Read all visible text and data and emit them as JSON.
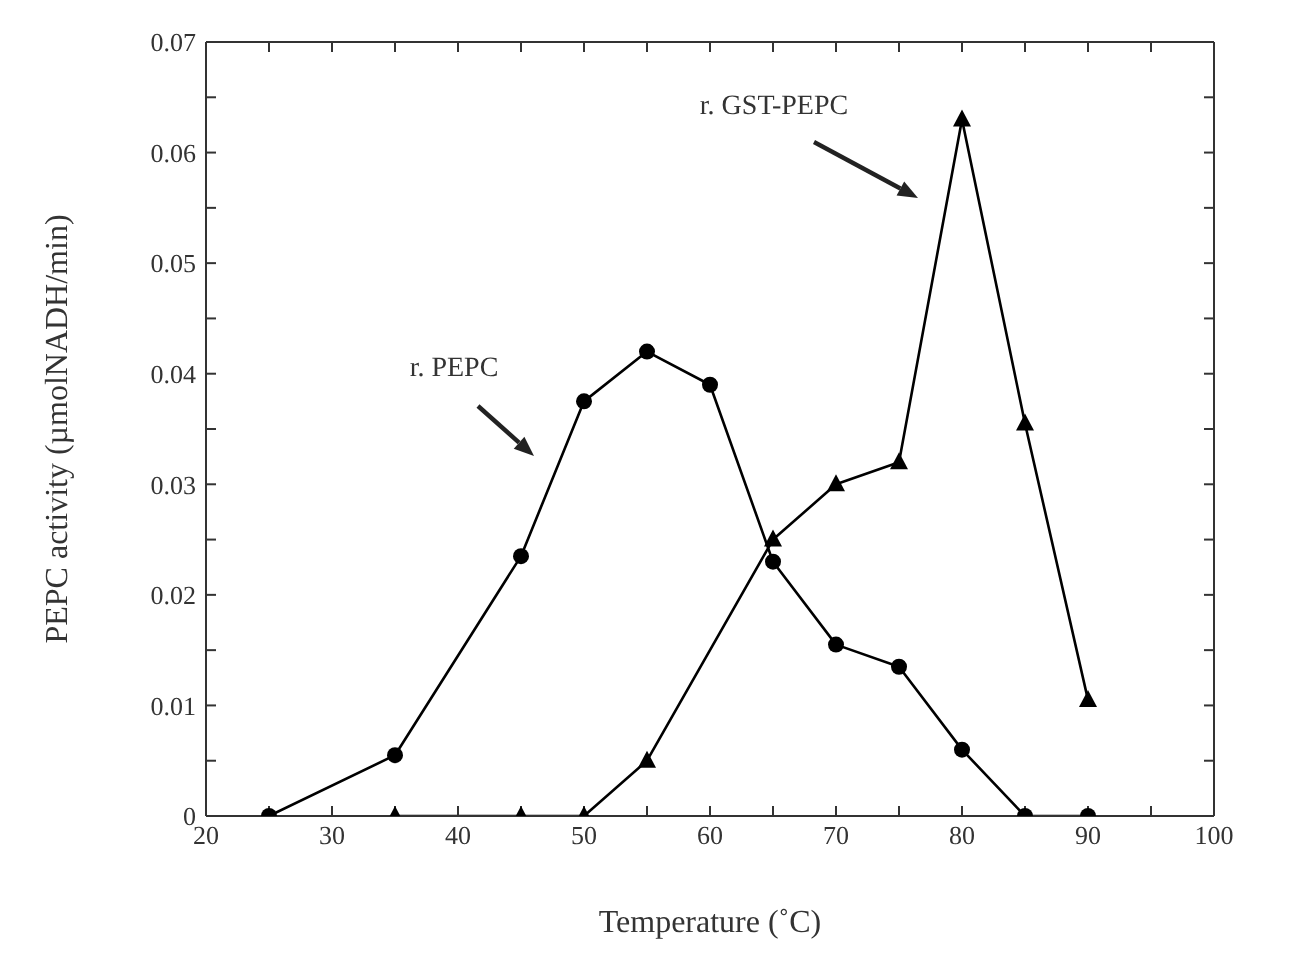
{
  "chart_data": {
    "type": "line",
    "xlabel": "Temperature (˚C)",
    "ylabel": "PEPC activity (µmolNADH/min)",
    "xlim": [
      20,
      100
    ],
    "xticks": [
      20,
      {
        "value": 25,
        "label": null
      },
      30,
      {
        "value": 35,
        "label": null
      },
      40,
      {
        "value": 45,
        "label": null
      },
      50,
      {
        "value": 55,
        "label": null
      },
      60,
      {
        "value": 65,
        "label": null
      },
      70,
      {
        "value": 75,
        "label": null
      },
      80,
      {
        "value": 85,
        "label": null
      },
      90,
      {
        "value": 95,
        "label": null
      },
      100
    ],
    "ylim": [
      0,
      0.07
    ],
    "yticks": [
      0,
      {
        "value": 0.005,
        "label": null
      },
      0.01,
      {
        "value": 0.015,
        "label": null
      },
      0.02,
      {
        "value": 0.025,
        "label": null
      },
      0.03,
      {
        "value": 0.035,
        "label": null
      },
      0.04,
      {
        "value": 0.045,
        "label": null
      },
      0.05,
      {
        "value": 0.055,
        "label": null
      },
      0.06,
      {
        "value": 0.065,
        "label": null
      },
      0.07
    ],
    "line_style": "solid",
    "series": [
      {
        "color": "#000000",
        "marker": "circle",
        "x": [
          25,
          35,
          45,
          50,
          55,
          60,
          65,
          70,
          75,
          80,
          85,
          90
        ],
        "values": [
          0,
          0.0055,
          0.0235,
          0.0375,
          0.042,
          0.039,
          0.023,
          0.0155,
          0.0135,
          0.006,
          0,
          0
        ]
      },
      {
        "color": "#000000",
        "marker": "triangle",
        "x": [
          35,
          45,
          50,
          55,
          65,
          70,
          75,
          80,
          85,
          90
        ],
        "values": [
          0,
          0,
          0,
          0.005,
          0.025,
          0.03,
          0.032,
          0.063,
          0.0355,
          0.0105
        ]
      }
    ],
    "annotations": [
      "r. PEPC",
      "r. GST-PEPC"
    ]
  }
}
